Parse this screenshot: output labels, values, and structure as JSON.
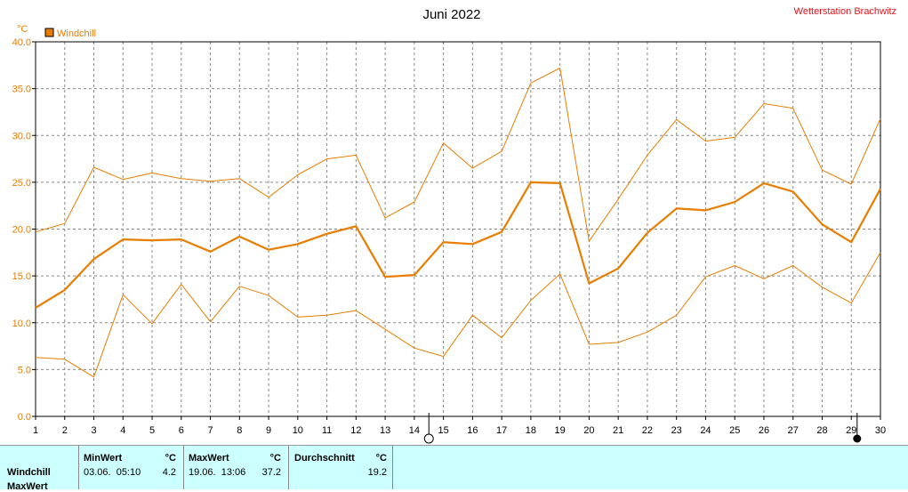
{
  "chart_data": {
    "type": "line",
    "title": "Juni 2022",
    "source": "Wetterstation Brachwitz",
    "ylabel": "°C",
    "ylim": [
      0,
      40
    ],
    "yticks": [
      "0.0",
      "5.0",
      "10.0",
      "15.0",
      "20.0",
      "25.0",
      "30.0",
      "35.0",
      "40.0"
    ],
    "x": [
      1,
      2,
      3,
      4,
      5,
      6,
      7,
      8,
      9,
      10,
      11,
      12,
      13,
      14,
      15,
      16,
      17,
      18,
      19,
      20,
      21,
      22,
      23,
      24,
      25,
      26,
      27,
      28,
      29,
      30
    ],
    "grid": true,
    "legend": "top-left",
    "legend_entries": [
      "Windchill"
    ],
    "series": [
      {
        "name": "Windchill",
        "role": "mean",
        "color": "#e87d00",
        "values": [
          11.6,
          13.5,
          16.8,
          18.9,
          18.8,
          18.9,
          17.6,
          19.2,
          17.8,
          18.4,
          19.5,
          20.3,
          14.9,
          15.1,
          18.6,
          18.4,
          19.7,
          25.0,
          24.9,
          14.2,
          15.8,
          19.6,
          22.2,
          22.0,
          22.9,
          24.9,
          24.0,
          20.5,
          18.6,
          24.3
        ]
      },
      {
        "role": "max",
        "color": "#e87d00",
        "values": [
          19.7,
          20.6,
          26.6,
          25.3,
          26.0,
          25.4,
          25.1,
          25.4,
          23.4,
          25.8,
          27.5,
          27.9,
          21.2,
          22.9,
          29.2,
          26.5,
          28.3,
          35.6,
          37.2,
          18.7,
          23.2,
          27.9,
          31.7,
          29.4,
          29.8,
          33.4,
          32.9,
          26.3,
          24.8,
          31.8
        ]
      },
      {
        "role": "min",
        "color": "#e87d00",
        "values": [
          6.3,
          6.1,
          4.2,
          13.0,
          9.9,
          14.1,
          10.1,
          13.9,
          12.9,
          10.6,
          10.8,
          11.3,
          9.3,
          7.3,
          6.4,
          10.8,
          8.4,
          12.4,
          15.2,
          7.7,
          7.9,
          9.0,
          10.8,
          14.9,
          16.1,
          14.7,
          16.1,
          13.8,
          12.1,
          17.5
        ]
      }
    ],
    "markers": [
      {
        "day": 14.5,
        "symbol": "open-circle"
      },
      {
        "day": 29.2,
        "symbol": "filled-circle"
      }
    ]
  },
  "summary": {
    "row_label": "Windchill",
    "row_label_2": "MaxWert",
    "min_header": "MinWert",
    "max_header": "MaxWert",
    "avg_header": "Durchschnitt",
    "unit": "°C",
    "min_date": "03.06.  05:10",
    "min_value": "4.2",
    "max_date": "19.06.  13:06",
    "max_value": "37.2",
    "avg_value": "19.2"
  }
}
